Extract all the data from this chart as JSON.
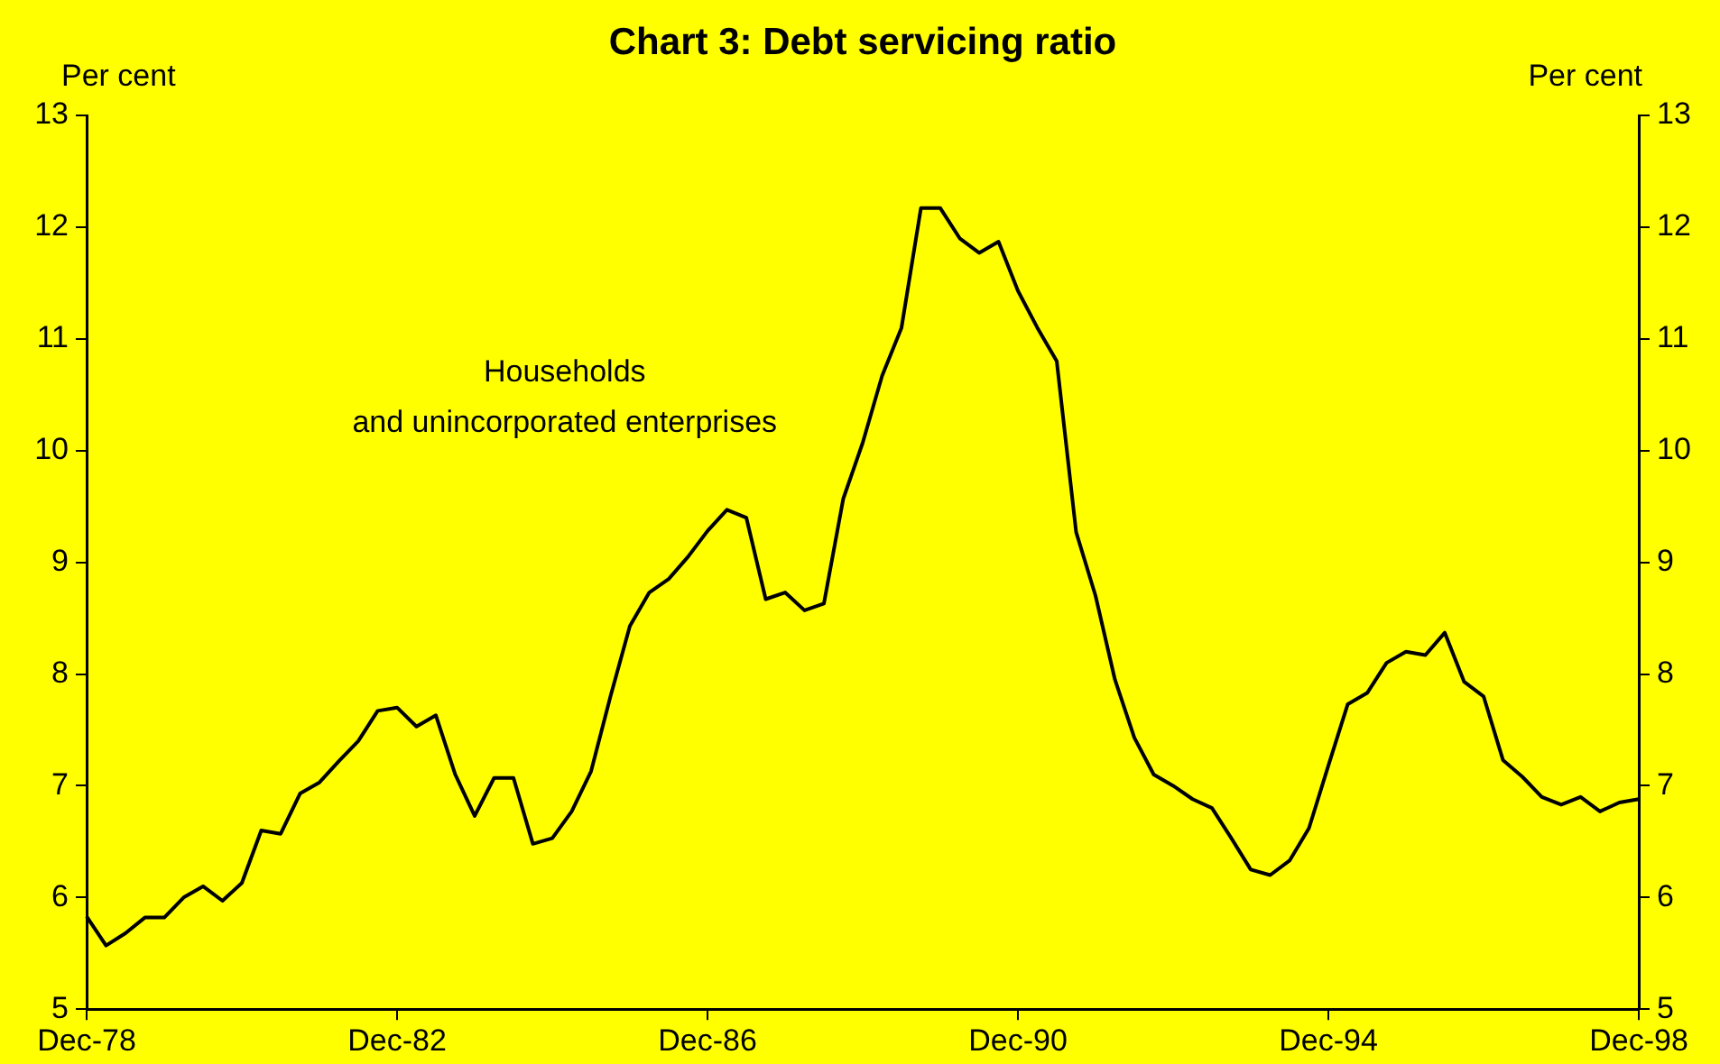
{
  "chart_data": {
    "type": "line",
    "title": "Chart 3: Debt servicing ratio",
    "ylabel": "Per cent",
    "y2label": "Per cent",
    "annotations": [
      "Households\nand unincorporated enterprises"
    ],
    "categories": [
      "Dec-78",
      null,
      null,
      null,
      null,
      null,
      null,
      null,
      null,
      null,
      null,
      null,
      null,
      null,
      null,
      null,
      "Dec-82",
      null,
      null,
      null,
      null,
      null,
      null,
      null,
      null,
      null,
      null,
      null,
      null,
      null,
      null,
      null,
      "Dec-86",
      null,
      null,
      null,
      null,
      null,
      null,
      null,
      null,
      null,
      null,
      null,
      null,
      null,
      null,
      null,
      "Dec-90",
      null,
      null,
      null,
      null,
      null,
      null,
      null,
      null,
      null,
      null,
      null,
      null,
      null,
      null,
      null,
      "Dec-94",
      null,
      null,
      null,
      null,
      null,
      null,
      null,
      null,
      null,
      null,
      null,
      null,
      null,
      null,
      null,
      "Dec-98"
    ],
    "values": [
      5.83,
      5.57,
      5.68,
      5.82,
      5.82,
      6.0,
      6.1,
      5.97,
      6.13,
      6.6,
      6.57,
      6.93,
      7.03,
      7.22,
      7.4,
      7.67,
      7.7,
      7.53,
      7.63,
      7.1,
      6.73,
      7.07,
      7.07,
      6.48,
      6.53,
      6.77,
      7.13,
      7.8,
      8.43,
      8.73,
      8.85,
      9.05,
      9.28,
      9.47,
      9.4,
      8.67,
      8.73,
      8.57,
      8.63,
      9.57,
      10.07,
      10.67,
      11.1,
      12.17,
      12.17,
      11.9,
      11.77,
      11.87,
      11.43,
      11.1,
      10.8,
      9.27,
      8.7,
      7.95,
      7.43,
      7.1,
      7.0,
      6.88,
      6.8,
      6.53,
      6.25,
      6.2,
      6.33,
      6.62,
      7.18,
      7.73,
      7.83,
      8.1,
      8.2,
      8.17,
      8.37,
      7.93,
      7.8,
      7.23,
      7.08,
      6.9,
      6.83,
      6.9,
      6.77,
      6.85,
      6.88
    ],
    "color": "#000000",
    "marker": "none",
    "ylim": [
      5,
      13
    ],
    "yticks": [
      5,
      6,
      7,
      8,
      9,
      10,
      11,
      12,
      13
    ],
    "y2lim": [
      5,
      13
    ],
    "y2ticks": [
      5,
      6,
      7,
      8,
      9,
      10,
      11,
      12,
      13
    ]
  }
}
